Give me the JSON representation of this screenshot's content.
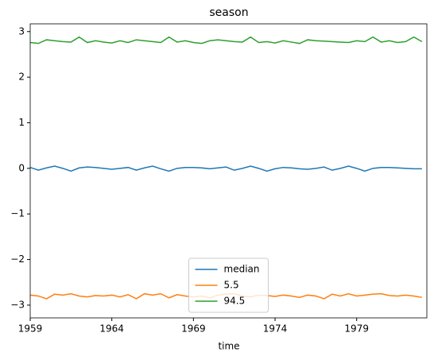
{
  "chart_data": {
    "type": "line",
    "title": "season",
    "xlabel": "time",
    "x": [
      1959,
      1959.5,
      1960,
      1960.5,
      1961,
      1961.5,
      1962,
      1962.5,
      1963,
      1963.5,
      1964,
      1964.5,
      1965,
      1965.5,
      1966,
      1966.5,
      1967,
      1967.5,
      1968,
      1968.5,
      1969,
      1969.5,
      1970,
      1970.5,
      1971,
      1971.5,
      1972,
      1972.5,
      1973,
      1973.5,
      1974,
      1974.5,
      1975,
      1975.5,
      1976,
      1976.5,
      1977,
      1977.5,
      1978,
      1978.5,
      1979,
      1979.5,
      1980,
      1980.5,
      1981,
      1981.5,
      1982,
      1982.5,
      1983
    ],
    "series": [
      {
        "name": "median",
        "color": "#1f77b4",
        "values": [
          0.02,
          -0.04,
          0.01,
          0.05,
          0.0,
          -0.06,
          0.01,
          0.03,
          0.02,
          0.0,
          -0.02,
          0.0,
          0.02,
          -0.04,
          0.01,
          0.05,
          -0.01,
          -0.06,
          0.0,
          0.02,
          0.02,
          0.01,
          -0.01,
          0.01,
          0.03,
          -0.04,
          0.0,
          0.05,
          0.0,
          -0.06,
          -0.01,
          0.02,
          0.01,
          -0.01,
          -0.02,
          0.0,
          0.03,
          -0.04,
          0.0,
          0.05,
          0.0,
          -0.06,
          0.0,
          0.02,
          0.02,
          0.01,
          0.0,
          -0.01,
          -0.01
        ]
      },
      {
        "name": "5.5",
        "color": "#ff7f0e",
        "values": [
          -2.78,
          -2.8,
          -2.86,
          -2.76,
          -2.78,
          -2.75,
          -2.8,
          -2.82,
          -2.79,
          -2.8,
          -2.78,
          -2.82,
          -2.77,
          -2.86,
          -2.75,
          -2.78,
          -2.75,
          -2.84,
          -2.77,
          -2.8,
          -2.82,
          -2.8,
          -2.84,
          -2.78,
          -2.76,
          -2.75,
          -2.8,
          -2.82,
          -2.78,
          -2.79,
          -2.81,
          -2.78,
          -2.8,
          -2.83,
          -2.78,
          -2.8,
          -2.86,
          -2.76,
          -2.8,
          -2.75,
          -2.8,
          -2.78,
          -2.76,
          -2.75,
          -2.79,
          -2.8,
          -2.78,
          -2.8,
          -2.83
        ]
      },
      {
        "name": "94.5",
        "color": "#2ca02c",
        "values": [
          2.76,
          2.74,
          2.82,
          2.8,
          2.78,
          2.77,
          2.88,
          2.76,
          2.8,
          2.77,
          2.75,
          2.8,
          2.76,
          2.82,
          2.8,
          2.78,
          2.76,
          2.88,
          2.77,
          2.8,
          2.76,
          2.74,
          2.8,
          2.82,
          2.8,
          2.78,
          2.77,
          2.88,
          2.76,
          2.78,
          2.75,
          2.8,
          2.77,
          2.74,
          2.82,
          2.8,
          2.79,
          2.78,
          2.77,
          2.76,
          2.8,
          2.78,
          2.88,
          2.77,
          2.8,
          2.76,
          2.78,
          2.88,
          2.78
        ]
      }
    ],
    "xlim": [
      1959,
      1983.3
    ],
    "xticks": [
      1959,
      1964,
      1969,
      1974,
      1979
    ],
    "ylim": [
      -3.28,
      3.17
    ],
    "yticks": [
      {
        "value": -3,
        "label": "−3"
      },
      {
        "value": -2,
        "label": "−2"
      },
      {
        "value": -1,
        "label": "−1"
      },
      0,
      1,
      2,
      3
    ],
    "legend": "lower center"
  }
}
